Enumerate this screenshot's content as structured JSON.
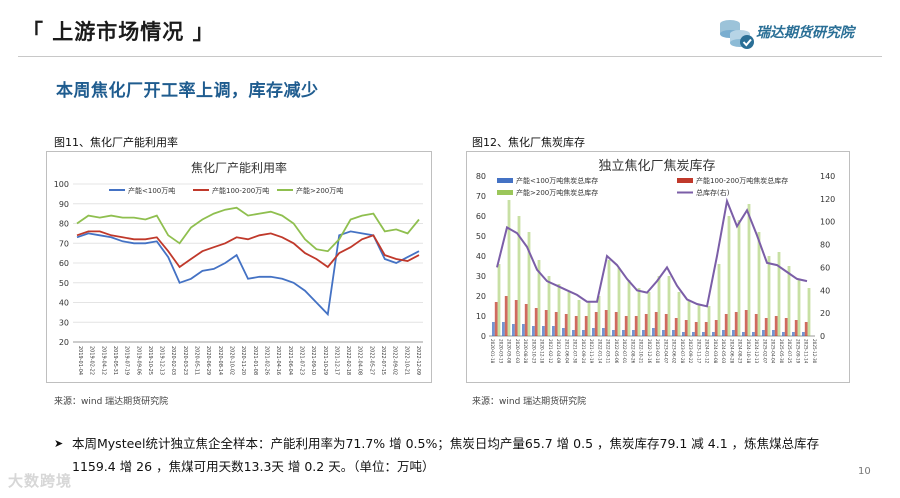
{
  "slide": {
    "title": "「 上游市场情况 」",
    "brand": "瑞达期货研究院",
    "headline": "本周焦化厂开工率上调，库存减少",
    "page_number": "10",
    "watermark": "大数跨境",
    "summary": "本周Mysteel统计独立焦企全样本：产能利用率为71.7% 增 0.5%；焦炭日均产量65.7 增 0.5 ，焦炭库存79.1 减 4.1 ，炼焦煤总库存1159.4 增 26 ，焦煤可用天数13.3天 增 0.2 天。（单位：万吨）"
  },
  "figures": [
    {
      "caption": "图11、焦化厂产能利用率",
      "source": "来源：wind   瑞达期货研究院"
    },
    {
      "caption": "图12、焦化厂焦炭库存",
      "source": "来源：wind   瑞达期货研究院"
    }
  ],
  "chart_data": [
    {
      "type": "line",
      "title": "焦化厂产能利用率",
      "ylim": [
        20,
        100
      ],
      "yticks": [
        20,
        30,
        40,
        50,
        60,
        70,
        80,
        90,
        100
      ],
      "colors": [
        "#4472c4",
        "#c0392b",
        "#8fbf4f"
      ],
      "x": [
        "2019-01-04",
        "2019-02-22",
        "2019-04-12",
        "2019-05-31",
        "2019-07-19",
        "2019-09-06",
        "2019-10-25",
        "2019-12-13",
        "2020-01-31",
        "2020-03-20",
        "2020-05-08",
        "2020-06-26",
        "2020-08-14",
        "2020-10-02",
        "2020-11-20",
        "2021-01-08",
        "2021-02-26",
        "2021-04-16",
        "2021-06-04",
        "2021-07-23",
        "2021-09-10",
        "2021-10-29",
        "2021-12-17",
        "2022-02-04",
        "2022-03-25",
        "2022-05-13",
        "2022-07-01",
        "2022-08-19",
        "2022-10-07",
        "2022-11-25",
        "2023-01-13"
      ],
      "xticks": [
        "2019-01-04",
        "2019-02-22",
        "2019-04-12",
        "2019-05-31",
        "2019-07-19",
        "2019-09-06",
        "2019-10-25",
        "2019-12-13",
        "2020-02-03",
        "2020-03-23",
        "2020-05-11",
        "2020-06-29",
        "2020-08-14",
        "2020-10-02",
        "2020-11-20",
        "2021-01-08",
        "2021-02-26",
        "2021-04-16",
        "2021-06-04",
        "2021-07-23",
        "2021-09-10",
        "2021-10-29",
        "2021-12-17",
        "2022-02-18",
        "2022-04-08",
        "2022-05-27",
        "2022-07-15",
        "2022-09-02",
        "2022-10-21",
        "2022-12-09"
      ],
      "series": [
        {
          "name": "产能<100万吨",
          "values": [
            73,
            75,
            74,
            73,
            71,
            70,
            70,
            71,
            63,
            50,
            52,
            56,
            57,
            60,
            64,
            52,
            53,
            53,
            52,
            50,
            46,
            40,
            34,
            74,
            76,
            75,
            74,
            62,
            60,
            63,
            66
          ]
        },
        {
          "name": "产能100-200万吨",
          "values": [
            74,
            76,
            76,
            74,
            73,
            72,
            72,
            73,
            66,
            58,
            62,
            66,
            68,
            70,
            73,
            72,
            74,
            75,
            73,
            70,
            65,
            62,
            58,
            65,
            68,
            72,
            74,
            64,
            62,
            61,
            64
          ]
        },
        {
          "name": "产能>200万吨",
          "values": [
            80,
            84,
            83,
            84,
            83,
            83,
            82,
            84,
            74,
            70,
            78,
            82,
            85,
            87,
            88,
            84,
            85,
            86,
            84,
            80,
            72,
            67,
            66,
            72,
            82,
            84,
            85,
            76,
            77,
            75,
            82
          ]
        }
      ]
    },
    {
      "type": "bar",
      "title": "独立焦化厂焦炭库存",
      "ylim_left": [
        0,
        80
      ],
      "ylim_right": [
        0,
        140
      ],
      "yticks_left": [
        0,
        10,
        20,
        30,
        40,
        50,
        60,
        70,
        80
      ],
      "yticks_right": [
        0,
        20,
        40,
        60,
        80,
        100,
        120,
        140
      ],
      "colors": [
        "#4472c4",
        "#c0392b",
        "#9bc65a",
        "#7b5ea7"
      ],
      "x": [
        "2020-01-18",
        "2020-02-21",
        "2020-03-27",
        "2020-05-01",
        "2020-06-05",
        "2020-07-10",
        "2020-08-14",
        "2020-09-18",
        "2020-10-23",
        "2020-11-27",
        "2021-01-01",
        "2021-02-05",
        "2021-03-12",
        "2021-04-16",
        "2021-05-21",
        "2021-06-25",
        "2021-07-30",
        "2021-09-03",
        "2021-10-08",
        "2021-11-12",
        "2021-12-17",
        "2022-01-21",
        "2022-02-25",
        "2022-04-01",
        "2022-05-06",
        "2022-06-10",
        "2022-07-15",
        "2022-08-19",
        "2022-09-23",
        "2022-10-28",
        "2022-12-02",
        "2022-12-30"
      ],
      "xticks": [
        "2020-01-18",
        "2020-03-13",
        "2020-05-08",
        "2020-07-03",
        "2020-08-28",
        "2020-10-23",
        "2020-12-18",
        "2021-02-12",
        "2021-04-09",
        "2021-06-04",
        "2021-07-30",
        "2021-09-24",
        "2021-11-19",
        "2022-01-14",
        "2022-03-11",
        "2022-05-06",
        "2022-07-01",
        "2022-08-26",
        "2022-10-21",
        "2022-12-16",
        "2023-02-10",
        "2023-04-07",
        "2023-06-02",
        "2023-07-28",
        "2023-09-22",
        "2023-11-17",
        "2024-01-12",
        "2024-03-08",
        "2024-05-03",
        "2024-06-28",
        "2024-08-23",
        "2024-10-18",
        "2024-12-13",
        "2025-02-07",
        "2025-04-04",
        "2025-05-30",
        "2025-07-25",
        "2025-09-19",
        "2025-11-14",
        "2025-12-30"
      ],
      "series": [
        {
          "name": "产能<100万吨焦炭总库存",
          "axis": "left",
          "values": [
            7,
            7,
            6,
            6,
            5,
            5,
            5,
            4,
            3,
            3,
            4,
            4,
            3,
            3,
            3,
            3,
            4,
            3,
            3,
            2,
            2,
            2,
            2,
            3,
            3,
            2,
            2,
            3,
            3,
            2,
            2,
            2
          ]
        },
        {
          "name": "产能100-200万吨焦炭总库存",
          "axis": "left",
          "values": [
            17,
            20,
            18,
            16,
            14,
            13,
            12,
            11,
            10,
            10,
            12,
            13,
            12,
            10,
            10,
            11,
            12,
            11,
            9,
            8,
            7,
            7,
            8,
            11,
            12,
            13,
            11,
            9,
            10,
            9,
            8,
            7
          ]
        },
        {
          "name": "产能>200万吨焦炭总库存",
          "axis": "left",
          "values": [
            36,
            68,
            60,
            52,
            38,
            30,
            26,
            22,
            18,
            17,
            20,
            38,
            34,
            28,
            24,
            22,
            30,
            30,
            22,
            18,
            16,
            15,
            36,
            60,
            58,
            66,
            52,
            40,
            42,
            35,
            28,
            24
          ]
        },
        {
          "name": "总库存(右)",
          "axis": "right",
          "values": [
            60,
            95,
            90,
            78,
            58,
            48,
            44,
            40,
            36,
            30,
            30,
            70,
            62,
            50,
            40,
            38,
            48,
            60,
            44,
            32,
            28,
            26,
            70,
            118,
            96,
            110,
            88,
            64,
            62,
            56,
            50,
            48
          ]
        }
      ]
    }
  ]
}
